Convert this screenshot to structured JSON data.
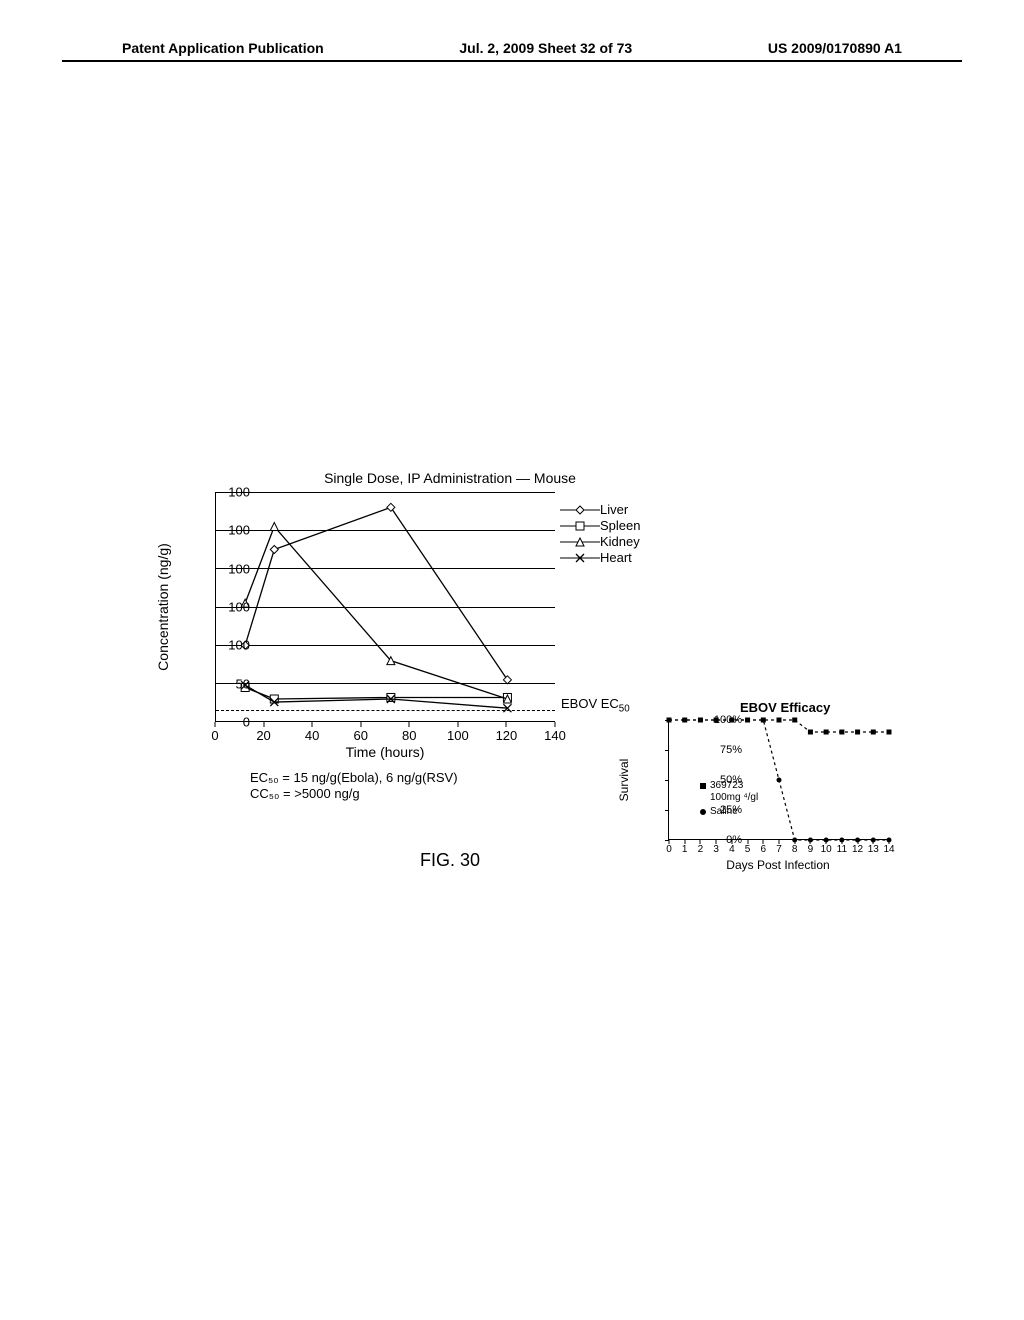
{
  "header": {
    "left": "Patent Application Publication",
    "center": "Jul. 2, 2009  Sheet 32 of 73",
    "right": "US 2009/0170890 A1"
  },
  "main_chart": {
    "title": "Single Dose, IP Administration — Mouse",
    "ylabel": "Concentration (ng/g)",
    "xlabel": "Time  (hours)",
    "type": "line",
    "ymin": 0,
    "ymax": 300,
    "yticks": [
      0,
      50,
      100,
      100,
      100,
      100,
      100
    ],
    "ytick_positions": [
      0,
      50,
      100,
      150,
      200,
      250,
      300
    ],
    "xmin": 0,
    "xmax": 140,
    "xticks": [
      0,
      20,
      40,
      60,
      80,
      100,
      120,
      140
    ],
    "gridlines_y": [
      50,
      100,
      150,
      200,
      250,
      300
    ],
    "ec50_y": 15,
    "ec50_label": "EBOV EC",
    "ec50_sub": "50",
    "series": [
      {
        "name": "Liver",
        "marker": "diamond",
        "points": [
          [
            12,
            100
          ],
          [
            24,
            225
          ],
          [
            72,
            280
          ],
          [
            120,
            55
          ]
        ]
      },
      {
        "name": "Spleen",
        "marker": "square",
        "points": [
          [
            12,
            45
          ],
          [
            24,
            30
          ],
          [
            72,
            32
          ],
          [
            120,
            32
          ]
        ]
      },
      {
        "name": "Kidney",
        "marker": "triangle",
        "points": [
          [
            12,
            155
          ],
          [
            24,
            255
          ],
          [
            72,
            80
          ],
          [
            120,
            30
          ]
        ]
      },
      {
        "name": "Heart",
        "marker": "x",
        "points": [
          [
            12,
            48
          ],
          [
            24,
            26
          ],
          [
            72,
            30
          ],
          [
            120,
            18
          ]
        ]
      }
    ],
    "line_color": "#000000",
    "line_width": 1.3,
    "marker_size": 8,
    "background_color": "#ffffff",
    "subnotes": [
      "EC₅₀ =  15  ng/g(Ebola),  6  ng/g(RSV)",
      "CC₅₀ =  >5000  ng/g"
    ]
  },
  "legend_main": [
    "Liver",
    "Spleen",
    "Kidney",
    "Heart"
  ],
  "survival_chart": {
    "title": "EBOV Efficacy",
    "ylabel": "Survival",
    "xlabel": "Days Post Infection",
    "ymin": 0,
    "ymax": 100,
    "yticks": [
      "0%",
      "25%",
      "50%",
      "75%",
      "100%"
    ],
    "ytick_positions": [
      0,
      25,
      50,
      75,
      100
    ],
    "xmin": 0,
    "xmax": 14,
    "xticks": [
      0,
      1,
      2,
      3,
      4,
      5,
      6,
      7,
      8,
      9,
      10,
      11,
      12,
      13,
      14
    ],
    "series": [
      {
        "name": "369723 100mg ⁴/gl",
        "marker": "square_filled",
        "dash": "dash",
        "points": [
          [
            0,
            100
          ],
          [
            1,
            100
          ],
          [
            2,
            100
          ],
          [
            3,
            100
          ],
          [
            4,
            100
          ],
          [
            5,
            100
          ],
          [
            6,
            100
          ],
          [
            7,
            100
          ],
          [
            8,
            100
          ],
          [
            9,
            90
          ],
          [
            10,
            90
          ],
          [
            11,
            90
          ],
          [
            12,
            90
          ],
          [
            13,
            90
          ],
          [
            14,
            90
          ]
        ]
      },
      {
        "name": "Saline",
        "marker": "circle_filled",
        "dash": "dash",
        "points": [
          [
            0,
            100
          ],
          [
            1,
            100
          ],
          [
            2,
            100
          ],
          [
            3,
            100
          ],
          [
            4,
            100
          ],
          [
            5,
            100
          ],
          [
            6,
            100
          ],
          [
            7,
            50
          ],
          [
            8,
            0
          ],
          [
            9,
            0
          ],
          [
            10,
            0
          ],
          [
            11,
            0
          ],
          [
            12,
            0
          ],
          [
            13,
            0
          ],
          [
            14,
            0
          ]
        ]
      }
    ],
    "legend_items": [
      "369723",
      "100mg ⁴/gl",
      "Saline"
    ],
    "line_color": "#000000",
    "marker_size": 5
  },
  "figure_label": "FIG. 30"
}
